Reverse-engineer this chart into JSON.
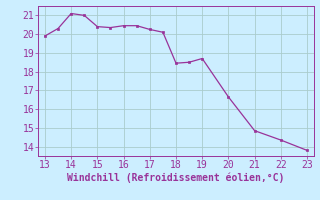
{
  "x": [
    13,
    13.5,
    14,
    14.5,
    15,
    15.5,
    16,
    16.5,
    17,
    17.5,
    18,
    18.5,
    19,
    20,
    21,
    22,
    23
  ],
  "y": [
    19.9,
    20.3,
    21.1,
    21.0,
    20.4,
    20.35,
    20.45,
    20.45,
    20.25,
    20.1,
    18.45,
    18.5,
    18.7,
    16.65,
    14.85,
    14.35,
    13.8
  ],
  "line_color": "#993399",
  "marker_color": "#993399",
  "bg_color": "#cceeff",
  "grid_color": "#aacccc",
  "xlabel": "Windchill (Refroidissement éolien,°C)",
  "xlabel_color": "#993399",
  "tick_color": "#993399",
  "spine_color": "#993399",
  "xlim": [
    12.75,
    23.25
  ],
  "ylim": [
    13.5,
    21.5
  ],
  "xticks": [
    13,
    14,
    15,
    16,
    17,
    18,
    19,
    20,
    21,
    22,
    23
  ],
  "yticks": [
    14,
    15,
    16,
    17,
    18,
    19,
    20,
    21
  ],
  "xlabel_fontsize": 7,
  "tick_fontsize": 7
}
